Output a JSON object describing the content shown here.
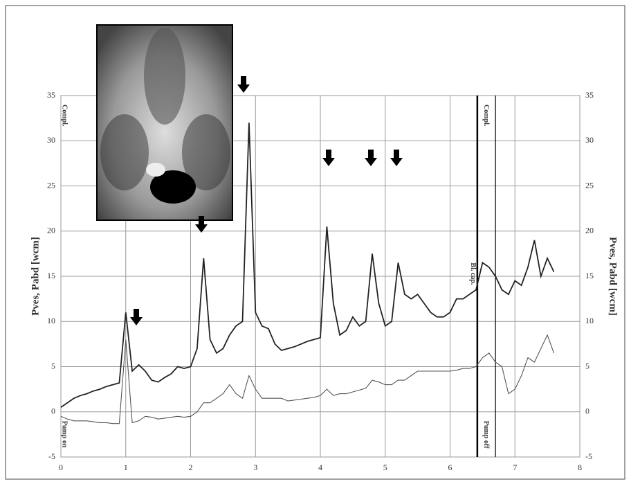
{
  "chart_data": {
    "type": "line",
    "y_label": "Pves, Pabd [wcm]",
    "x": [
      0,
      0.1,
      0.2,
      0.3,
      0.4,
      0.5,
      0.6,
      0.7,
      0.8,
      0.9,
      1.0,
      1.1,
      1.2,
      1.3,
      1.4,
      1.5,
      1.6,
      1.7,
      1.8,
      1.9,
      2.0,
      2.1,
      2.2,
      2.3,
      2.4,
      2.5,
      2.6,
      2.7,
      2.8,
      2.9,
      3.0,
      3.1,
      3.2,
      3.3,
      3.4,
      3.5,
      3.6,
      3.7,
      3.8,
      3.9,
      4.0,
      4.1,
      4.2,
      4.3,
      4.4,
      4.5,
      4.6,
      4.7,
      4.8,
      4.9,
      5.0,
      5.1,
      5.2,
      5.3,
      5.4,
      5.5,
      5.6,
      5.7,
      5.8,
      5.9,
      6.0,
      6.1,
      6.2,
      6.3,
      6.4,
      6.5,
      6.6,
      6.7,
      6.8,
      6.9,
      7.0,
      7.1,
      7.2,
      7.3,
      7.4,
      7.5,
      7.6
    ],
    "series": [
      {
        "color": "#222222",
        "values": [
          0.5,
          1,
          1.5,
          1.8,
          2,
          2.3,
          2.5,
          2.8,
          3,
          3.2,
          11,
          4.5,
          5.2,
          4.5,
          3.5,
          3.3,
          3.8,
          4.2,
          5,
          4.8,
          5,
          7,
          17,
          8,
          6.5,
          7,
          8.5,
          9.5,
          10,
          32,
          11,
          9.5,
          9.2,
          7.5,
          6.8,
          7,
          7.2,
          7.5,
          7.8,
          8,
          8.2,
          20.5,
          12,
          8.5,
          9,
          10.5,
          9.5,
          10,
          17.5,
          12,
          9.5,
          10,
          16.5,
          13,
          12.5,
          13,
          12,
          11,
          10.5,
          10.5,
          11,
          12.5,
          12.5,
          13,
          13.5,
          16.5,
          16,
          15,
          13.5,
          13,
          14.5,
          14,
          16,
          19,
          15,
          17,
          15.5
        ]
      },
      {
        "color": "#555555",
        "values": [
          -0.5,
          -0.8,
          -1,
          -1,
          -1,
          -1.1,
          -1.2,
          -1.2,
          -1.3,
          -1.3,
          8,
          -1.2,
          -1,
          -0.5,
          -0.6,
          -0.8,
          -0.7,
          -0.6,
          -0.5,
          -0.6,
          -0.5,
          0,
          1,
          1,
          1.5,
          2,
          3,
          2,
          1.5,
          4,
          2.5,
          1.5,
          1.5,
          1.5,
          1.5,
          1.2,
          1.3,
          1.4,
          1.5,
          1.6,
          1.8,
          2.5,
          1.8,
          2,
          2,
          2.2,
          2.4,
          2.6,
          3.5,
          3.3,
          3,
          3,
          3.5,
          3.5,
          4,
          4.5,
          4.5,
          4.5,
          4.5,
          4.5,
          4.5,
          4.6,
          4.8,
          4.8,
          5,
          6,
          6.5,
          5.5,
          5,
          2,
          2.5,
          4,
          6,
          5.5,
          7,
          8.5,
          6.5
        ]
      }
    ],
    "xlim": [
      0,
      8
    ],
    "xticks": [
      0,
      1,
      2,
      3,
      4,
      5,
      6,
      7,
      8
    ],
    "ylim": [
      -5,
      35
    ],
    "yticks": [
      -5,
      0,
      5,
      10,
      15,
      20,
      25,
      30,
      35
    ],
    "grid": true,
    "event_lines": [
      6.42,
      6.7
    ],
    "annotations": [
      {
        "text": "Compl.",
        "x": 0.05,
        "y": 34
      },
      {
        "text": "Pump on",
        "x": 0.05,
        "y": -1
      },
      {
        "text": "Bl. cap.",
        "x": 6.35,
        "y": 16.5
      },
      {
        "text": "Compl.",
        "x": 6.55,
        "y": 34
      },
      {
        "text": "Pump off",
        "x": 6.55,
        "y": -1
      }
    ]
  }
}
